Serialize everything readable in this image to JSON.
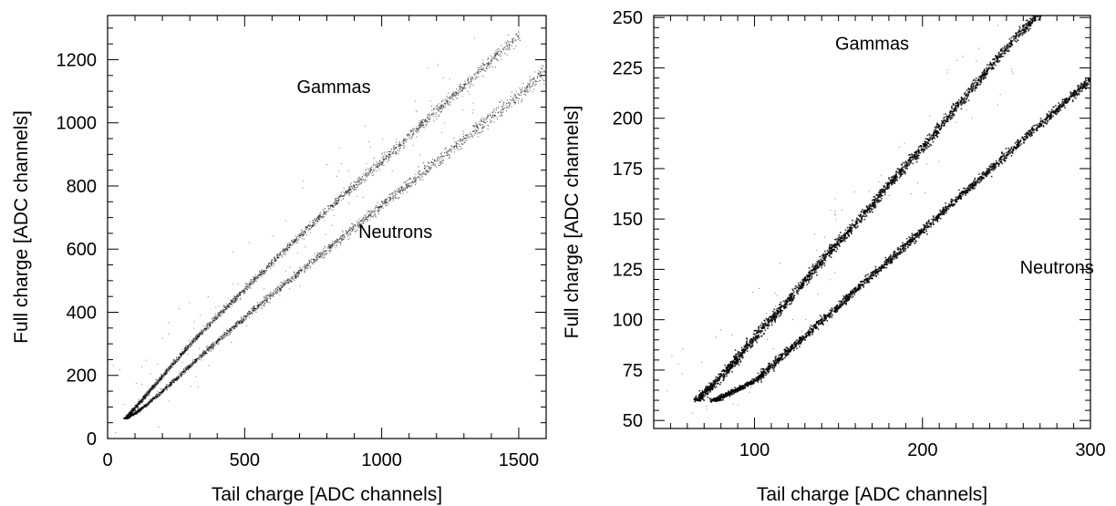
{
  "chart_data": [
    {
      "type": "scatter",
      "title": "",
      "xlabel": "Tail charge [ADC channels]",
      "ylabel": "Full charge [ADC channels]",
      "xlim": [
        0,
        1600
      ],
      "ylim": [
        0,
        1340
      ],
      "x_ticks": [
        0,
        500,
        1000,
        1500
      ],
      "y_ticks": [
        0,
        200,
        400,
        600,
        800,
        1000,
        1200
      ],
      "x_tick_labels": [
        "0",
        "500",
        "1000",
        "1500"
      ],
      "y_tick_labels": [
        "0",
        "200",
        "400",
        "600",
        "800",
        "1000",
        "1200"
      ],
      "grid": false,
      "series": [
        {
          "name": "Gammas",
          "x": [
            65,
            100,
            150,
            200,
            300,
            400,
            500,
            600,
            700,
            800,
            900,
            1000,
            1100,
            1200,
            1300,
            1400,
            1500
          ],
          "y": [
            65,
            100,
            150,
            200,
            300,
            390,
            475,
            560,
            645,
            725,
            805,
            880,
            960,
            1040,
            1120,
            1200,
            1280
          ],
          "spread": 0.02
        },
        {
          "name": "Neutrons",
          "x": [
            65,
            100,
            150,
            200,
            300,
            400,
            500,
            600,
            700,
            800,
            900,
            1000,
            1100,
            1200,
            1300,
            1400,
            1500,
            1600
          ],
          "y": [
            65,
            82,
            115,
            152,
            232,
            310,
            385,
            460,
            530,
            600,
            670,
            740,
            810,
            880,
            950,
            1020,
            1090,
            1170
          ],
          "spread": 0.025
        }
      ],
      "annotations": [
        {
          "text": "Gammas",
          "x": 825,
          "y": 1095
        },
        {
          "text": "Neutrons",
          "x": 1050,
          "y": 635
        }
      ]
    },
    {
      "type": "scatter",
      "title": "",
      "xlabel": "Tail charge [ADC channels]",
      "ylabel": "Full charge [ADC channels]",
      "xlim": [
        40,
        300
      ],
      "ylim": [
        46,
        251
      ],
      "x_ticks": [
        100,
        200,
        300
      ],
      "y_ticks": [
        50,
        75,
        100,
        125,
        150,
        175,
        200,
        225,
        250
      ],
      "x_tick_labels": [
        "100",
        "200",
        "300"
      ],
      "y_tick_labels": [
        "50",
        "75",
        "100",
        "125",
        "150",
        "175",
        "200",
        "225",
        "250"
      ],
      "grid": false,
      "series": [
        {
          "name": "Gammas",
          "x": [
            65,
            80,
            100,
            120,
            140,
            160,
            180,
            200,
            220,
            240,
            260,
            270
          ],
          "y": [
            60,
            72,
            92,
            110,
            130,
            148,
            168,
            186,
            206,
            226,
            245,
            252
          ],
          "spread": 0.04
        },
        {
          "name": "Neutrons",
          "x": [
            75,
            100,
            120,
            140,
            160,
            180,
            200,
            220,
            240,
            260,
            280,
            300
          ],
          "y": [
            60,
            70,
            85,
            100,
            115,
            130,
            145,
            160,
            175,
            190,
            205,
            220
          ],
          "spread": 0.04
        }
      ],
      "annotations": [
        {
          "text": "Gammas",
          "x": 170,
          "y": 234
        },
        {
          "text": "Neutrons",
          "x": 280,
          "y": 123
        }
      ]
    }
  ]
}
